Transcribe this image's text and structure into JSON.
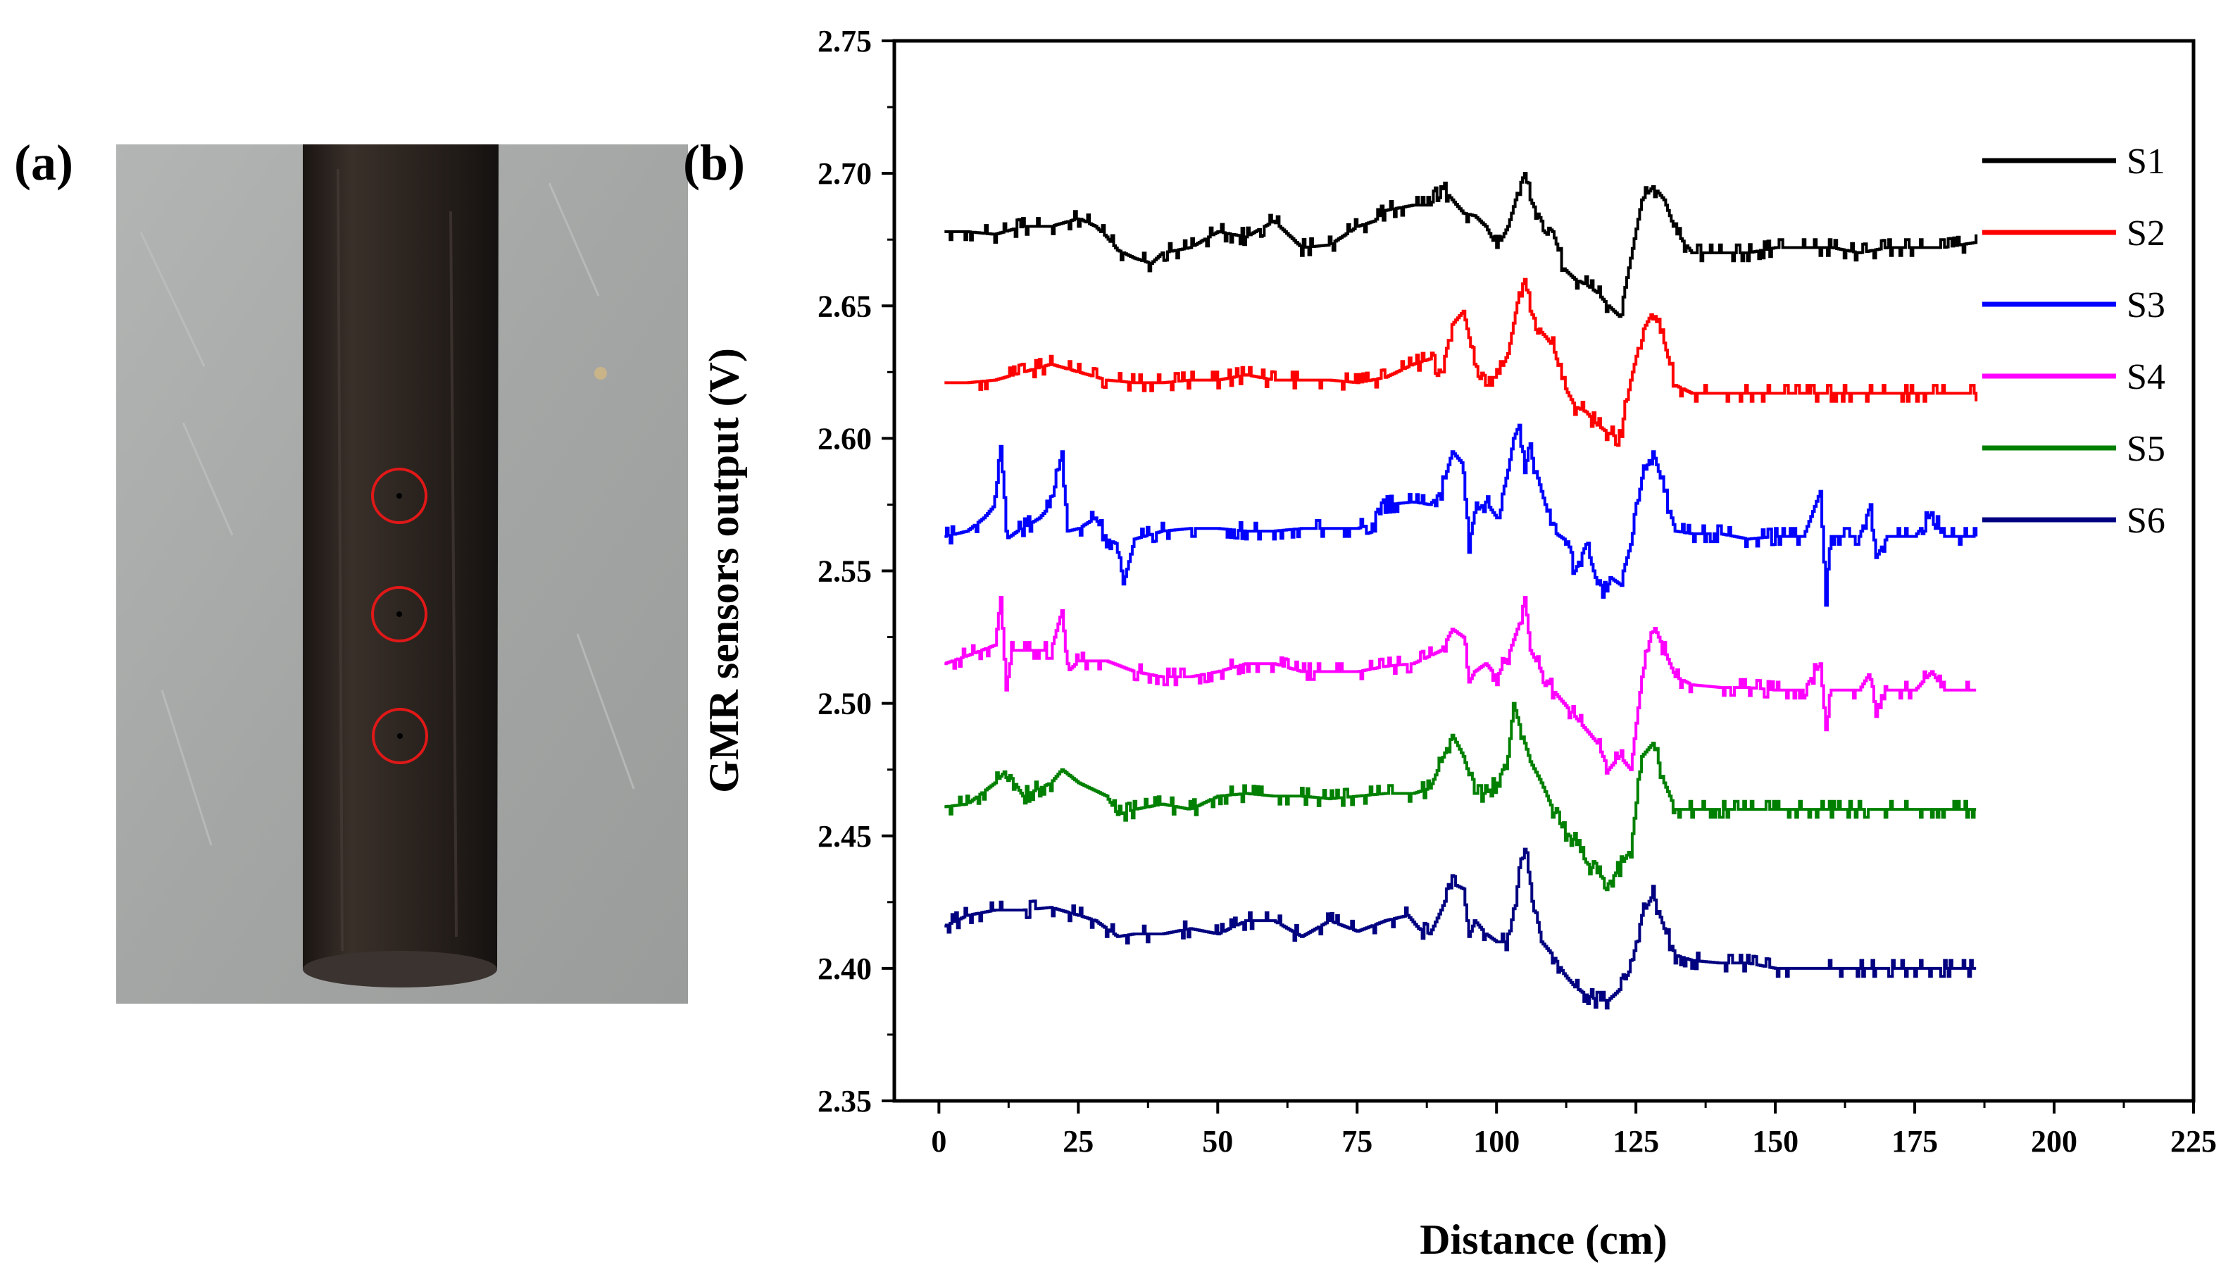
{
  "panels": {
    "a_label": "(a)",
    "b_label": "(b)"
  },
  "photo": {
    "background_color": "#a5a7a6",
    "pipe_color": "#2a2320",
    "circle_color": "#e01818",
    "marked_defects": 3
  },
  "chart_data": {
    "type": "line",
    "title": "",
    "xlabel": "Distance (cm)",
    "ylabel": "GMR sensors output (V)",
    "xlim": [
      -8,
      225
    ],
    "ylim": [
      2.35,
      2.75
    ],
    "xticks": [
      0,
      25,
      50,
      75,
      100,
      125,
      150,
      175,
      200,
      225
    ],
    "yticks": [
      2.35,
      2.4,
      2.45,
      2.5,
      2.55,
      2.6,
      2.65,
      2.7,
      2.75
    ],
    "ytick_labels": [
      "2.35",
      "2.40",
      "2.45",
      "2.50",
      "2.55",
      "2.60",
      "2.65",
      "2.70",
      "2.75"
    ],
    "legend_position": "top-right",
    "series": [
      {
        "name": "S1",
        "color": "#000000",
        "x": [
          1,
          5,
          10,
          15,
          20,
          25,
          28,
          30,
          32,
          35,
          38,
          40,
          45,
          50,
          55,
          60,
          65,
          70,
          75,
          78,
          80,
          85,
          88,
          90,
          92,
          94,
          96,
          98,
          100,
          102,
          104,
          105,
          106,
          108,
          110,
          112,
          114,
          116,
          118,
          120,
          122,
          124,
          126,
          128,
          130,
          132,
          135,
          140,
          145,
          150,
          155,
          160,
          165,
          170,
          175,
          180,
          186
        ],
        "y": [
          2.678,
          2.678,
          2.677,
          2.68,
          2.68,
          2.683,
          2.68,
          2.676,
          2.671,
          2.668,
          2.666,
          2.67,
          2.672,
          2.678,
          2.676,
          2.682,
          2.672,
          2.673,
          2.68,
          2.682,
          2.686,
          2.688,
          2.688,
          2.695,
          2.69,
          2.685,
          2.684,
          2.68,
          2.672,
          2.68,
          2.695,
          2.7,
          2.69,
          2.682,
          2.678,
          2.664,
          2.66,
          2.658,
          2.655,
          2.65,
          2.646,
          2.668,
          2.69,
          2.695,
          2.69,
          2.678,
          2.67,
          2.67,
          2.67,
          2.672,
          2.672,
          2.672,
          2.67,
          2.672,
          2.672,
          2.672,
          2.674
        ]
      },
      {
        "name": "S2",
        "color": "#ff0000",
        "x": [
          1,
          5,
          10,
          15,
          20,
          25,
          30,
          35,
          40,
          45,
          50,
          55,
          60,
          65,
          70,
          75,
          80,
          85,
          88,
          90,
          92,
          94,
          96,
          98,
          100,
          102,
          104,
          105,
          106,
          108,
          110,
          112,
          114,
          116,
          118,
          120,
          122,
          124,
          126,
          128,
          130,
          132,
          135,
          140,
          145,
          150,
          155,
          160,
          165,
          170,
          175,
          180,
          186
        ],
        "y": [
          2.621,
          2.621,
          2.622,
          2.625,
          2.628,
          2.625,
          2.622,
          2.621,
          2.621,
          2.622,
          2.622,
          2.624,
          2.622,
          2.622,
          2.622,
          2.621,
          2.623,
          2.628,
          2.63,
          2.625,
          2.643,
          2.648,
          2.628,
          2.623,
          2.623,
          2.632,
          2.655,
          2.66,
          2.648,
          2.64,
          2.635,
          2.62,
          2.612,
          2.61,
          2.605,
          2.602,
          2.6,
          2.622,
          2.64,
          2.648,
          2.636,
          2.62,
          2.617,
          2.617,
          2.617,
          2.617,
          2.617,
          2.617,
          2.617,
          2.617,
          2.617,
          2.617,
          2.617
        ]
      },
      {
        "name": "S3",
        "color": "#0000ff",
        "x": [
          1,
          5,
          8,
          10,
          11,
          12,
          14,
          18,
          20,
          22,
          23,
          25,
          28,
          30,
          32,
          33,
          35,
          40,
          45,
          50,
          55,
          60,
          65,
          70,
          75,
          78,
          80,
          85,
          88,
          90,
          92,
          94,
          95,
          96,
          98,
          100,
          102,
          103,
          104,
          105,
          106,
          108,
          110,
          112,
          114,
          116,
          118,
          119,
          120,
          122,
          124,
          126,
          128,
          130,
          132,
          135,
          140,
          145,
          150,
          155,
          158,
          159,
          160,
          165,
          167,
          168,
          170,
          175,
          178,
          180,
          186
        ],
        "y": [
          2.563,
          2.565,
          2.57,
          2.575,
          2.6,
          2.562,
          2.565,
          2.57,
          2.575,
          2.595,
          2.565,
          2.566,
          2.57,
          2.562,
          2.56,
          2.545,
          2.562,
          2.565,
          2.566,
          2.566,
          2.565,
          2.565,
          2.566,
          2.566,
          2.566,
          2.568,
          2.575,
          2.576,
          2.575,
          2.58,
          2.595,
          2.59,
          2.56,
          2.572,
          2.576,
          2.57,
          2.588,
          2.6,
          2.605,
          2.59,
          2.595,
          2.58,
          2.565,
          2.562,
          2.55,
          2.56,
          2.545,
          2.54,
          2.548,
          2.545,
          2.56,
          2.585,
          2.595,
          2.58,
          2.565,
          2.564,
          2.564,
          2.562,
          2.563,
          2.563,
          2.58,
          2.54,
          2.563,
          2.563,
          2.575,
          2.555,
          2.563,
          2.563,
          2.572,
          2.563,
          2.563
        ]
      },
      {
        "name": "S4",
        "color": "#ff00ff",
        "x": [
          1,
          5,
          10,
          11,
          12,
          13,
          15,
          20,
          22,
          23,
          25,
          30,
          35,
          40,
          45,
          50,
          55,
          60,
          65,
          70,
          75,
          80,
          85,
          88,
          90,
          92,
          94,
          95,
          96,
          98,
          100,
          102,
          104,
          105,
          106,
          108,
          110,
          112,
          114,
          116,
          118,
          120,
          122,
          124,
          126,
          128,
          130,
          132,
          135,
          140,
          145,
          150,
          155,
          158,
          159,
          160,
          165,
          167,
          168,
          170,
          175,
          178,
          180,
          186
        ],
        "y": [
          2.515,
          2.518,
          2.522,
          2.54,
          2.505,
          2.52,
          2.52,
          2.52,
          2.535,
          2.512,
          2.516,
          2.516,
          2.512,
          2.51,
          2.51,
          2.512,
          2.515,
          2.515,
          2.512,
          2.512,
          2.512,
          2.514,
          2.515,
          2.518,
          2.52,
          2.528,
          2.525,
          2.508,
          2.512,
          2.515,
          2.51,
          2.518,
          2.53,
          2.54,
          2.52,
          2.512,
          2.505,
          2.5,
          2.495,
          2.49,
          2.485,
          2.475,
          2.48,
          2.475,
          2.51,
          2.53,
          2.52,
          2.51,
          2.507,
          2.506,
          2.506,
          2.505,
          2.505,
          2.515,
          2.49,
          2.505,
          2.505,
          2.512,
          2.495,
          2.505,
          2.505,
          2.512,
          2.505,
          2.505
        ]
      },
      {
        "name": "S5",
        "color": "#008000",
        "x": [
          1,
          5,
          10,
          12,
          15,
          20,
          22,
          25,
          30,
          32,
          35,
          40,
          45,
          50,
          55,
          60,
          65,
          70,
          75,
          80,
          85,
          88,
          90,
          92,
          94,
          96,
          98,
          100,
          102,
          103,
          104,
          106,
          108,
          110,
          112,
          114,
          116,
          118,
          120,
          122,
          124,
          126,
          128,
          130,
          132,
          135,
          140,
          145,
          150,
          155,
          160,
          165,
          170,
          175,
          180,
          186
        ],
        "y": [
          2.461,
          2.462,
          2.47,
          2.475,
          2.465,
          2.47,
          2.475,
          2.47,
          2.465,
          2.458,
          2.46,
          2.462,
          2.46,
          2.465,
          2.466,
          2.465,
          2.465,
          2.464,
          2.465,
          2.466,
          2.466,
          2.468,
          2.478,
          2.488,
          2.48,
          2.466,
          2.466,
          2.47,
          2.48,
          2.5,
          2.492,
          2.478,
          2.47,
          2.46,
          2.452,
          2.448,
          2.44,
          2.436,
          2.432,
          2.438,
          2.445,
          2.48,
          2.485,
          2.47,
          2.46,
          2.46,
          2.46,
          2.46,
          2.46,
          2.46,
          2.46,
          2.46,
          2.46,
          2.46,
          2.46,
          2.46
        ]
      },
      {
        "name": "S6",
        "color": "#000080",
        "x": [
          1,
          5,
          10,
          15,
          20,
          25,
          28,
          30,
          32,
          35,
          40,
          45,
          50,
          55,
          60,
          65,
          70,
          75,
          80,
          84,
          86,
          88,
          90,
          92,
          94,
          95,
          96,
          98,
          100,
          102,
          104,
          105,
          106,
          108,
          110,
          112,
          114,
          116,
          118,
          120,
          122,
          124,
          126,
          128,
          130,
          132,
          135,
          140,
          145,
          150,
          155,
          160,
          165,
          170,
          175,
          180,
          186
        ],
        "y": [
          2.416,
          2.42,
          2.422,
          2.422,
          2.423,
          2.42,
          2.418,
          2.415,
          2.412,
          2.413,
          2.413,
          2.415,
          2.413,
          2.418,
          2.418,
          2.412,
          2.418,
          2.414,
          2.418,
          2.42,
          2.415,
          2.413,
          2.422,
          2.432,
          2.43,
          2.412,
          2.418,
          2.413,
          2.41,
          2.41,
          2.435,
          2.445,
          2.432,
          2.41,
          2.405,
          2.398,
          2.393,
          2.39,
          2.388,
          2.388,
          2.392,
          2.4,
          2.42,
          2.428,
          2.415,
          2.405,
          2.403,
          2.402,
          2.402,
          2.4,
          2.4,
          2.4,
          2.4,
          2.4,
          2.4,
          2.4,
          2.4
        ]
      }
    ]
  }
}
